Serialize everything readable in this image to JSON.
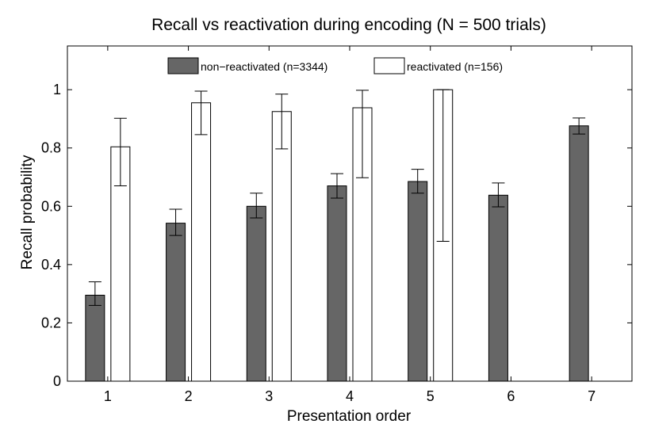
{
  "chart_data": {
    "type": "bar",
    "title": "Recall vs reactivation during encoding (N = 500 trials)",
    "xlabel": "Presentation order",
    "ylabel": "Recall probability",
    "categories": [
      "1",
      "2",
      "3",
      "4",
      "5",
      "6",
      "7"
    ],
    "ylim": [
      0,
      1.15
    ],
    "yticks": [
      0,
      0.2,
      0.4,
      0.6,
      0.8,
      1
    ],
    "ytick_labels": [
      "0",
      "0.2",
      "0.4",
      "0.6",
      "0.8",
      "1"
    ],
    "grid": false,
    "legend_position": "top",
    "series": [
      {
        "name": "non−reactivated (n=3344)",
        "color": "#666666",
        "values": [
          0.295,
          0.542,
          0.6,
          0.67,
          0.685,
          0.638,
          0.876
        ],
        "err_low": [
          0.26,
          0.5,
          0.56,
          0.628,
          0.645,
          0.598,
          0.848
        ],
        "err_high": [
          0.341,
          0.59,
          0.645,
          0.712,
          0.727,
          0.68,
          0.903
        ]
      },
      {
        "name": "reactivated (n=156)",
        "color": "#ffffff",
        "values": [
          0.804,
          0.955,
          0.925,
          0.938,
          1.0,
          null,
          null
        ],
        "err_low": [
          0.67,
          0.846,
          0.797,
          0.698,
          0.48,
          null,
          null
        ],
        "err_high": [
          0.902,
          0.995,
          0.985,
          0.998,
          1.0,
          null,
          null
        ]
      }
    ]
  }
}
